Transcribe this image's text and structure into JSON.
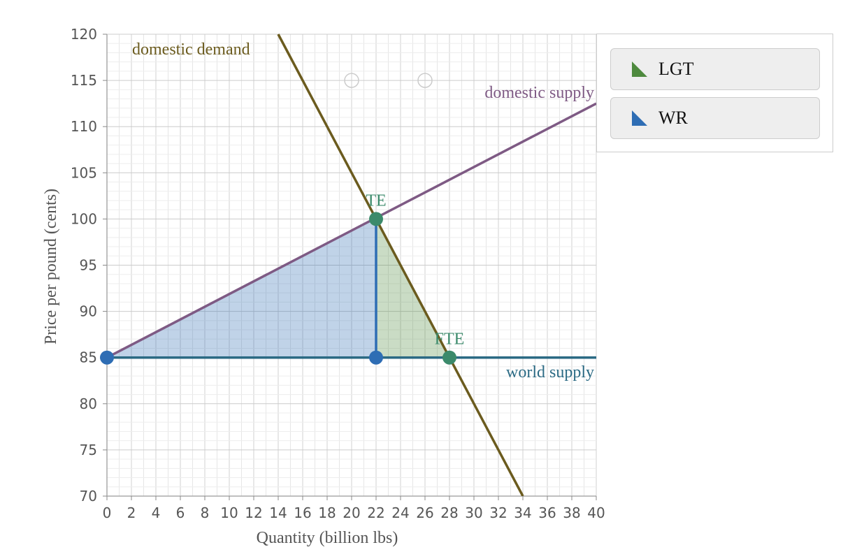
{
  "chart_data": {
    "type": "line",
    "xlabel": "Quantity (billion lbs)",
    "ylabel": "Price per pound (cents)",
    "xlim": [
      0,
      40
    ],
    "ylim": [
      70,
      120
    ],
    "x_ticks": [
      0,
      2,
      4,
      6,
      8,
      10,
      12,
      14,
      16,
      18,
      20,
      22,
      24,
      26,
      28,
      30,
      32,
      34,
      36,
      38,
      40
    ],
    "y_ticks": [
      70,
      75,
      80,
      85,
      90,
      95,
      100,
      105,
      110,
      115,
      120
    ],
    "grid": true,
    "series": [
      {
        "name": "domestic demand",
        "color": "#6b5b1e",
        "points": [
          [
            14,
            120
          ],
          [
            34,
            70
          ]
        ]
      },
      {
        "name": "domestic supply",
        "color": "#7e5a84",
        "points": [
          [
            0,
            85
          ],
          [
            40,
            112.5
          ]
        ]
      },
      {
        "name": "world supply",
        "color": "#2b6a84",
        "points": [
          [
            0,
            85
          ],
          [
            40,
            85
          ]
        ]
      }
    ],
    "regions": [
      {
        "name": "WR",
        "color": "#2e6db4",
        "polygon": [
          [
            0,
            85
          ],
          [
            22,
            100
          ],
          [
            22,
            85
          ]
        ]
      },
      {
        "name": "LGT",
        "color": "#4e8a3e",
        "polygon": [
          [
            22,
            100
          ],
          [
            28,
            85
          ],
          [
            22,
            85
          ]
        ]
      }
    ],
    "points": [
      {
        "label": "TE",
        "x": 22,
        "y": 100,
        "color": "#3b8a6b"
      },
      {
        "label": "FTE",
        "x": 28,
        "y": 85,
        "color": "#3b8a6b"
      },
      {
        "label": "",
        "x": 22,
        "y": 85,
        "color": "#2e6db4"
      },
      {
        "label": "",
        "x": 0,
        "y": 85,
        "color": "#2e6db4"
      }
    ],
    "hollow_points": [
      {
        "x": 20,
        "y": 115
      },
      {
        "x": 26,
        "y": 115
      }
    ],
    "vertical_segment": {
      "x": 22,
      "from": 85,
      "to": 100,
      "color": "#2e6db4"
    },
    "legend_placement": "top-right"
  },
  "legend": {
    "items": [
      {
        "label": "LGT",
        "color": "#4e8a3e"
      },
      {
        "label": "WR",
        "color": "#2e6db4"
      }
    ]
  }
}
